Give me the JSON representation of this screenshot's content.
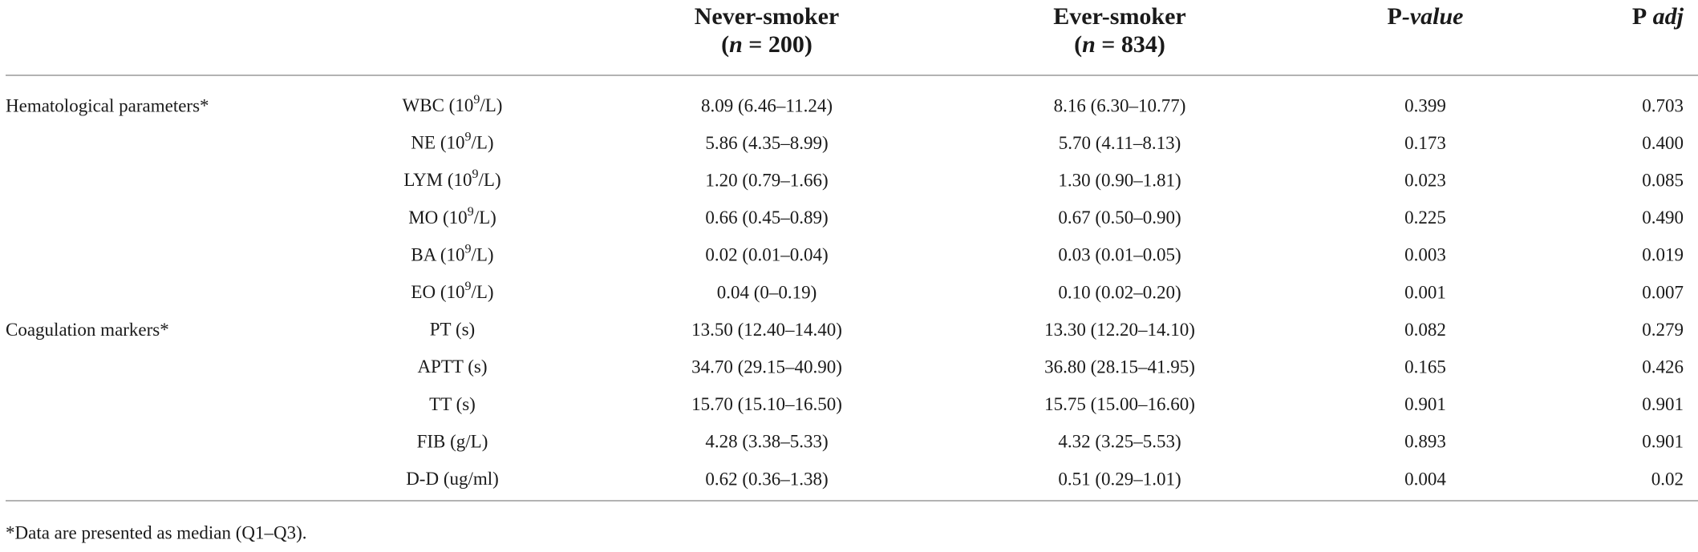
{
  "table": {
    "columns": [
      {
        "parts": [
          "Never-smoker"
        ],
        "sub": [
          "(",
          "n",
          " = 200)"
        ]
      },
      {
        "parts": [
          "Ever-smoker"
        ],
        "sub": [
          "(",
          "n",
          " = 834)"
        ]
      },
      {
        "parts": [
          "P",
          "-value"
        ]
      },
      {
        "parts": [
          "P",
          " adj"
        ]
      }
    ],
    "groups": [
      {
        "label": "Hematological parameters*",
        "rows": [
          {
            "label": [
              "WBC (10",
              "9",
              "/L)"
            ],
            "cells": [
              "8.09 (6.46–11.24)",
              "8.16 (6.30–10.77)",
              "0.399",
              "0.703"
            ]
          },
          {
            "label": [
              "NE (10",
              "9",
              "/L)"
            ],
            "cells": [
              "5.86 (4.35–8.99)",
              "5.70 (4.11–8.13)",
              "0.173",
              "0.400"
            ]
          },
          {
            "label": [
              "LYM (10",
              "9",
              "/L)"
            ],
            "cells": [
              "1.20 (0.79–1.66)",
              "1.30 (0.90–1.81)",
              "0.023",
              "0.085"
            ]
          },
          {
            "label": [
              "MO (10",
              "9",
              "/L)"
            ],
            "cells": [
              "0.66 (0.45–0.89)",
              "0.67 (0.50–0.90)",
              "0.225",
              "0.490"
            ]
          },
          {
            "label": [
              "BA (10",
              "9",
              "/L)"
            ],
            "cells": [
              "0.02 (0.01–0.04)",
              "0.03 (0.01–0.05)",
              "0.003",
              "0.019"
            ]
          },
          {
            "label": [
              "EO (10",
              "9",
              "/L)"
            ],
            "cells": [
              "0.04 (0–0.19)",
              "0.10 (0.02–0.20)",
              "0.001",
              "0.007"
            ]
          }
        ]
      },
      {
        "label": "Coagulation markers*",
        "rows": [
          {
            "label": [
              "PT (s)"
            ],
            "cells": [
              "13.50 (12.40–14.40)",
              "13.30 (12.20–14.10)",
              "0.082",
              "0.279"
            ]
          },
          {
            "label": [
              "APTT (s)"
            ],
            "cells": [
              "34.70 (29.15–40.90)",
              "36.80 (28.15–41.95)",
              "0.165",
              "0.426"
            ]
          },
          {
            "label": [
              "TT (s)"
            ],
            "cells": [
              "15.70 (15.10–16.50)",
              "15.75 (15.00–16.60)",
              "0.901",
              "0.901"
            ]
          },
          {
            "label": [
              "FIB (g/L)"
            ],
            "cells": [
              "4.28 (3.38–5.33)",
              "4.32 (3.25–5.53)",
              "0.893",
              "0.901"
            ]
          },
          {
            "label": [
              "D-D (ug/ml)"
            ],
            "cells": [
              "0.62 (0.36–1.38)",
              "0.51 (0.29–1.01)",
              "0.004",
              "0.02"
            ]
          }
        ]
      }
    ],
    "footnote": "*Data are presented as median (Q1–Q3)."
  }
}
